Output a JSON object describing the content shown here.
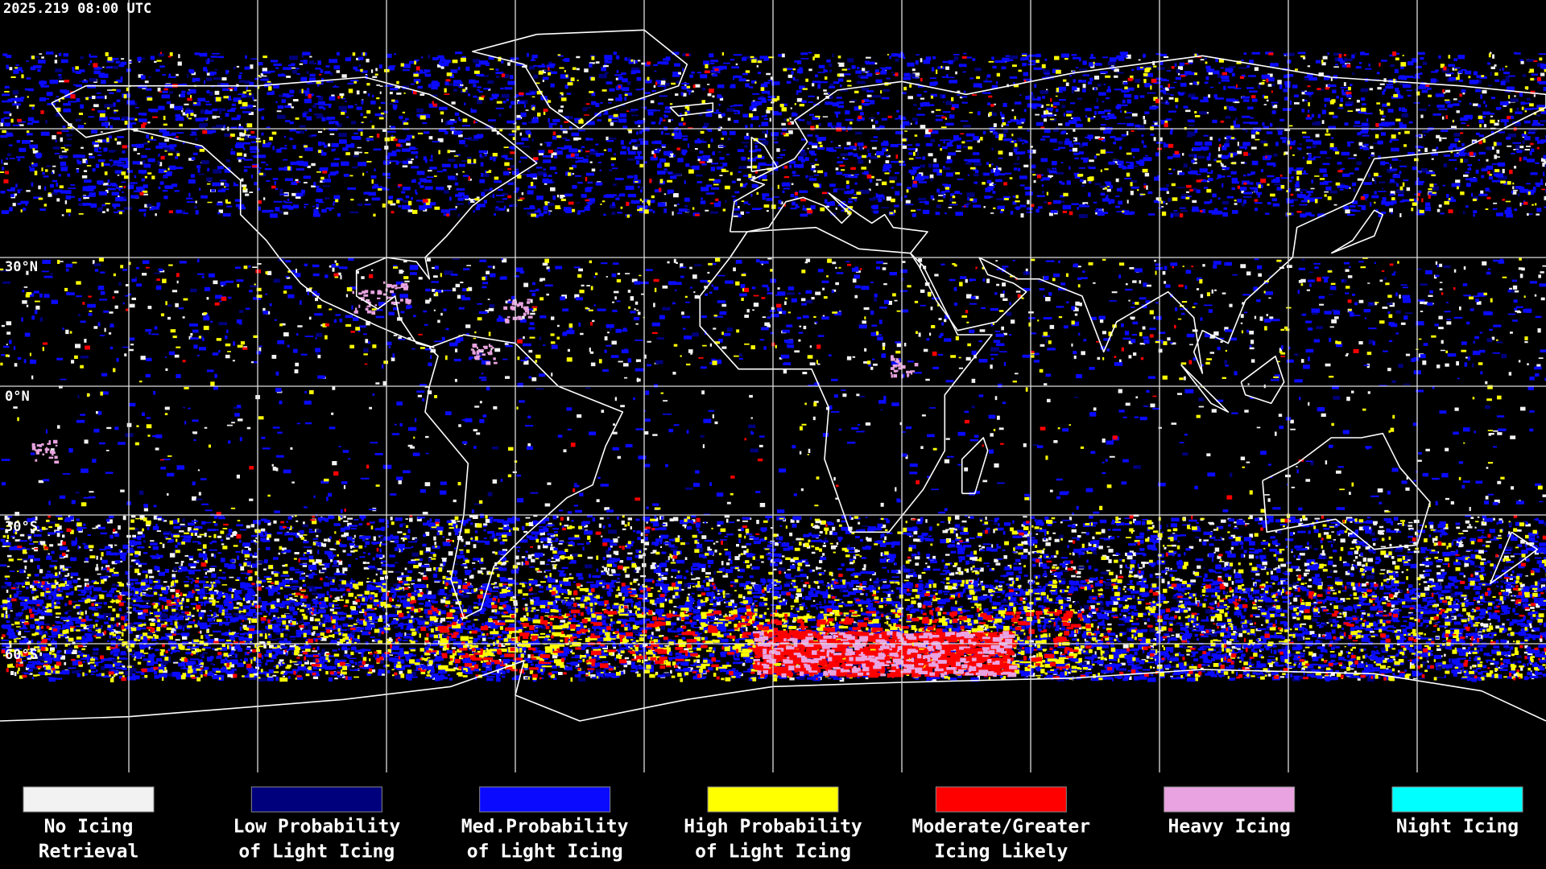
{
  "header": {
    "timestamp": "2025.219 08:00 UTC"
  },
  "latitude_labels": [
    "30°N",
    "0°N",
    "30°S",
    "60°S"
  ],
  "legend": {
    "items": [
      {
        "lines": [
          "No Icing",
          "Retrieval"
        ],
        "color": "#f2f2f2"
      },
      {
        "lines": [
          "Low Probability",
          "of Light Icing"
        ],
        "color": "#00007c"
      },
      {
        "lines": [
          "Med.Probability",
          "of Light Icing"
        ],
        "color": "#0a0aff"
      },
      {
        "lines": [
          "High Probability",
          "of Light Icing"
        ],
        "color": "#ffff00"
      },
      {
        "lines": [
          "Moderate/Greater",
          "Icing Likely"
        ],
        "color": "#ff0000"
      },
      {
        "lines": [
          "Heavy Icing"
        ],
        "color": "#e8a3e0"
      },
      {
        "lines": [
          "Night Icing"
        ],
        "color": "#00ffff"
      }
    ]
  }
}
